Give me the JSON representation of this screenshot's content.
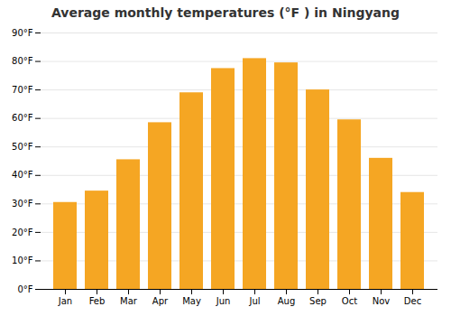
{
  "chart_data": {
    "type": "bar",
    "title": "Average monthly temperatures (°F ) in Ningyang",
    "categories": [
      "Jan",
      "Feb",
      "Mar",
      "Apr",
      "May",
      "Jun",
      "Jul",
      "Aug",
      "Sep",
      "Oct",
      "Nov",
      "Dec"
    ],
    "values": [
      30.5,
      34.5,
      45.5,
      58.5,
      69,
      77.5,
      81,
      79.5,
      70,
      59.5,
      46,
      34
    ],
    "color": "#F5A623",
    "ylim": [
      0,
      90
    ],
    "yticks": [
      {
        "value": 0,
        "label": "0°F"
      },
      {
        "value": 10,
        "label": "10°F"
      },
      {
        "value": 20,
        "label": "20°F"
      },
      {
        "value": 30,
        "label": "30°F"
      },
      {
        "value": 40,
        "label": "40°F"
      },
      {
        "value": 50,
        "label": "50°F"
      },
      {
        "value": 60,
        "label": "60°F"
      },
      {
        "value": 70,
        "label": "70°F"
      },
      {
        "value": 80,
        "label": "80°F"
      },
      {
        "value": 90,
        "label": "90°F"
      }
    ],
    "grid": true
  }
}
